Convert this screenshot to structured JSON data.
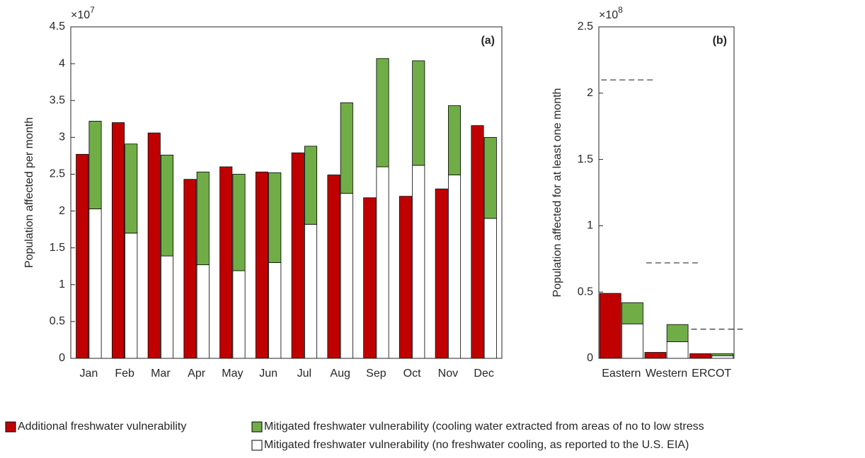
{
  "chart_data": [
    {
      "type": "bar",
      "annotation": "(a)",
      "y_label": "Population affected per month",
      "y_multiplier": {
        "base": "×10",
        "exponent": "7"
      },
      "categories": [
        "Jan",
        "Feb",
        "Mar",
        "Apr",
        "May",
        "Jun",
        "Jul",
        "Aug",
        "Sep",
        "Oct",
        "Nov",
        "Dec"
      ],
      "series": [
        {
          "name": "Additional freshwater vulnerability",
          "color": "#c00000",
          "values": [
            2.77,
            3.2,
            3.06,
            2.43,
            2.6,
            2.53,
            2.79,
            2.49,
            2.18,
            2.2,
            2.3,
            3.16
          ]
        },
        {
          "name": "Mitigated freshwater vulnerability (no freshwater cooling, as reported to the U.S. EIA)",
          "color": "#ffffff",
          "values": [
            2.03,
            1.7,
            1.39,
            1.27,
            1.19,
            1.3,
            1.82,
            2.24,
            2.6,
            2.62,
            2.49,
            1.9
          ]
        },
        {
          "name": "Mitigated freshwater vulnerability (cooling water extracted from areas of no to low stress",
          "color": "#70ad47",
          "values": [
            1.19,
            1.21,
            1.37,
            1.26,
            1.31,
            1.22,
            1.06,
            1.23,
            1.47,
            1.42,
            0.94,
            1.1
          ]
        }
      ],
      "ylim": [
        0,
        4.5
      ],
      "yticks": [
        0,
        0.5,
        1,
        1.5,
        2,
        2.5,
        3,
        3.5,
        4,
        4.5
      ]
    },
    {
      "type": "bar",
      "annotation": "(b)",
      "y_label": "Population affected for at least one month",
      "y_multiplier": {
        "base": "×10",
        "exponent": "8"
      },
      "categories": [
        "Eastern",
        "Western",
        "ERCOT"
      ],
      "series": [
        {
          "color": "#c00000",
          "values": [
            0.49,
            0.045,
            0.035
          ]
        },
        {
          "color": "#ffffff",
          "values": [
            0.26,
            0.125,
            0.02
          ]
        },
        {
          "color": "#70ad47",
          "values": [
            0.16,
            0.13,
            0.015
          ]
        }
      ],
      "reference_values": [
        2.1,
        0.72,
        0.22
      ],
      "ylim": [
        0,
        2.5
      ],
      "yticks": [
        0,
        0.5,
        1,
        1.5,
        2,
        2.5
      ]
    }
  ]
}
